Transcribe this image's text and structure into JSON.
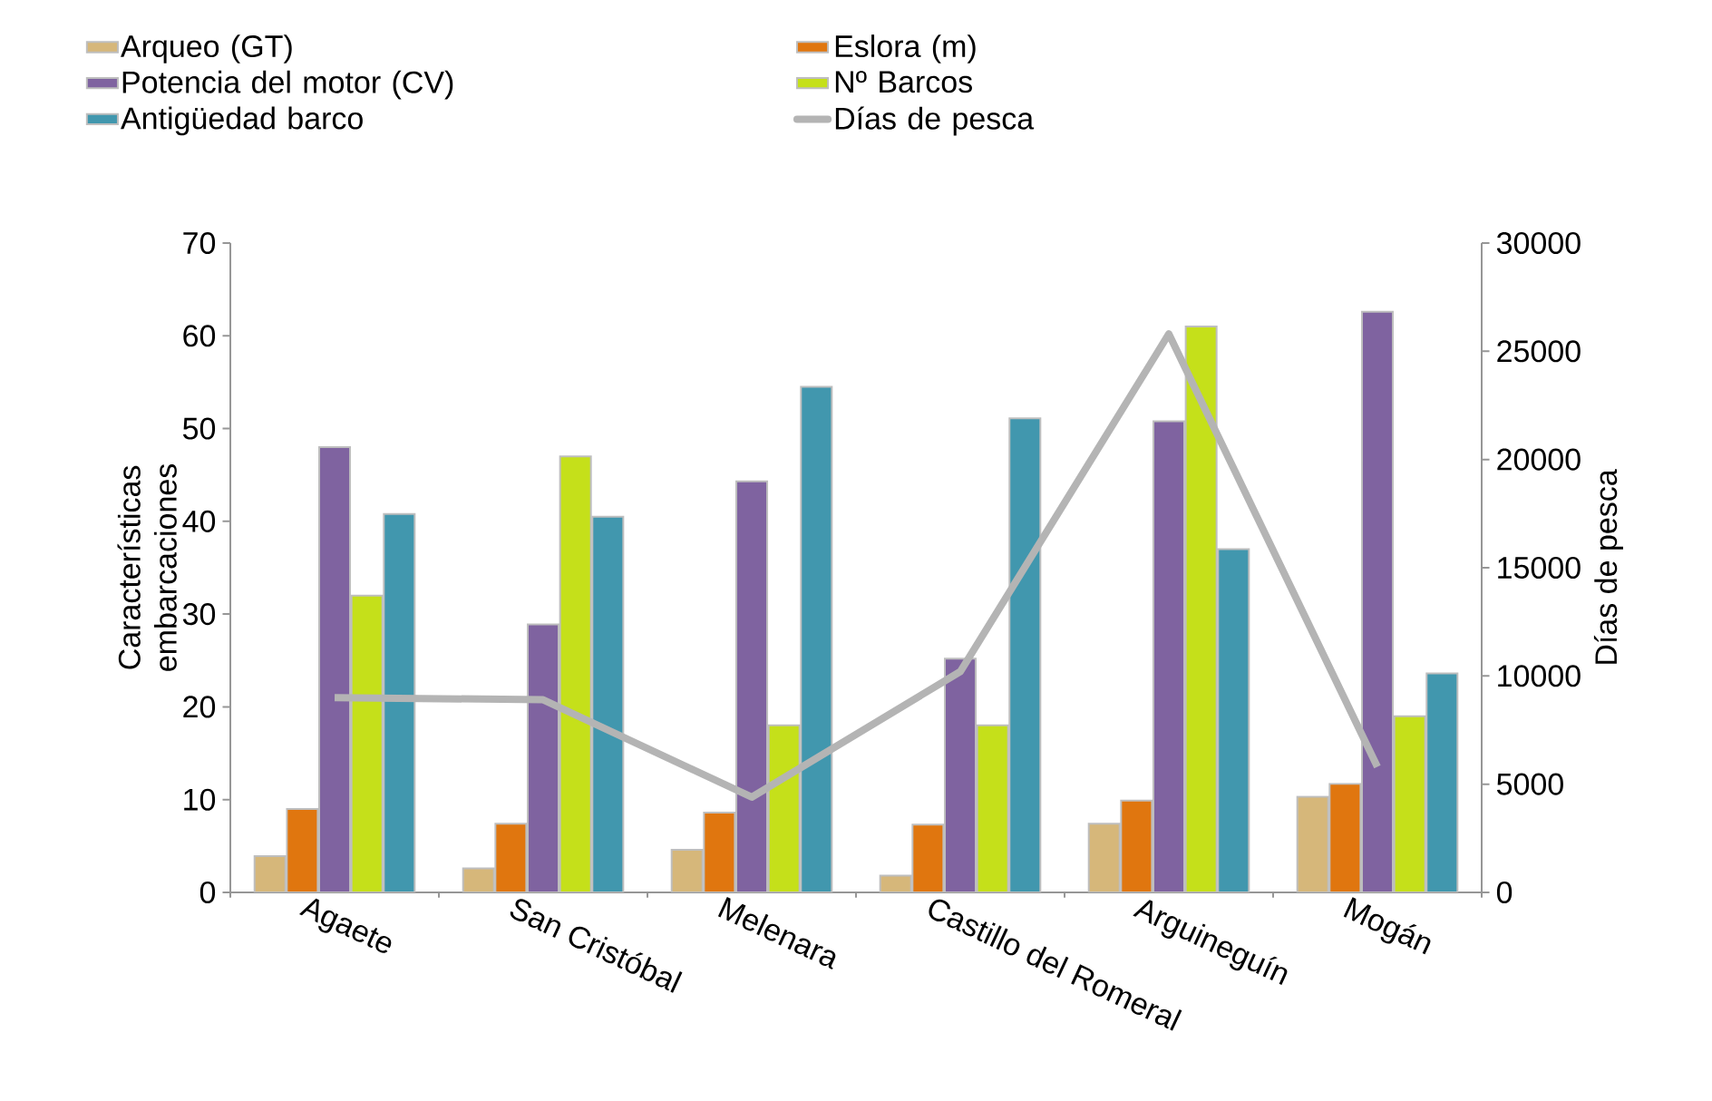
{
  "chart_data": {
    "type": "bar",
    "ylabel": "Características embarcaciones",
    "y2label": "Días de pesca",
    "categories": [
      "Agaete",
      "San Cristóbal",
      "Melenara",
      "Castillo del Romeral",
      "Arguineguín",
      "Mogán"
    ],
    "ylim": [
      0,
      70
    ],
    "yticks": [
      0,
      10,
      20,
      30,
      40,
      50,
      60,
      70
    ],
    "y2lim": [
      0,
      30000
    ],
    "y2ticks": [
      0,
      5000,
      10000,
      15000,
      20000,
      25000,
      30000
    ],
    "legend": "top",
    "grid": false,
    "series": [
      {
        "name": "Arqueo (GT)",
        "color": "#d6b77a",
        "values": [
          3.9,
          2.6,
          4.6,
          1.8,
          7.4,
          10.3
        ]
      },
      {
        "name": "Eslora (m)",
        "color": "#e0760f",
        "values": [
          9,
          7.4,
          8.6,
          7.3,
          9.9,
          11.7
        ]
      },
      {
        "name": "Potencia del motor (CV)",
        "color": "#7f63a0",
        "values": [
          48,
          28.9,
          44.3,
          25.2,
          50.8,
          62.6
        ]
      },
      {
        "name": "Nº Barcos",
        "color": "#c5e01a",
        "values": [
          32,
          47,
          18,
          18,
          61,
          19
        ]
      },
      {
        "name": "Antigüedad barco",
        "color": "#4197ae",
        "values": [
          40.8,
          40.5,
          54.5,
          51.1,
          37,
          23.6
        ]
      },
      {
        "name": "Días de pesca",
        "type": "line",
        "axis": "y2",
        "color": "#b4b4b4",
        "values": [
          9000,
          8900,
          4400,
          10200,
          25800,
          5800
        ]
      }
    ]
  }
}
